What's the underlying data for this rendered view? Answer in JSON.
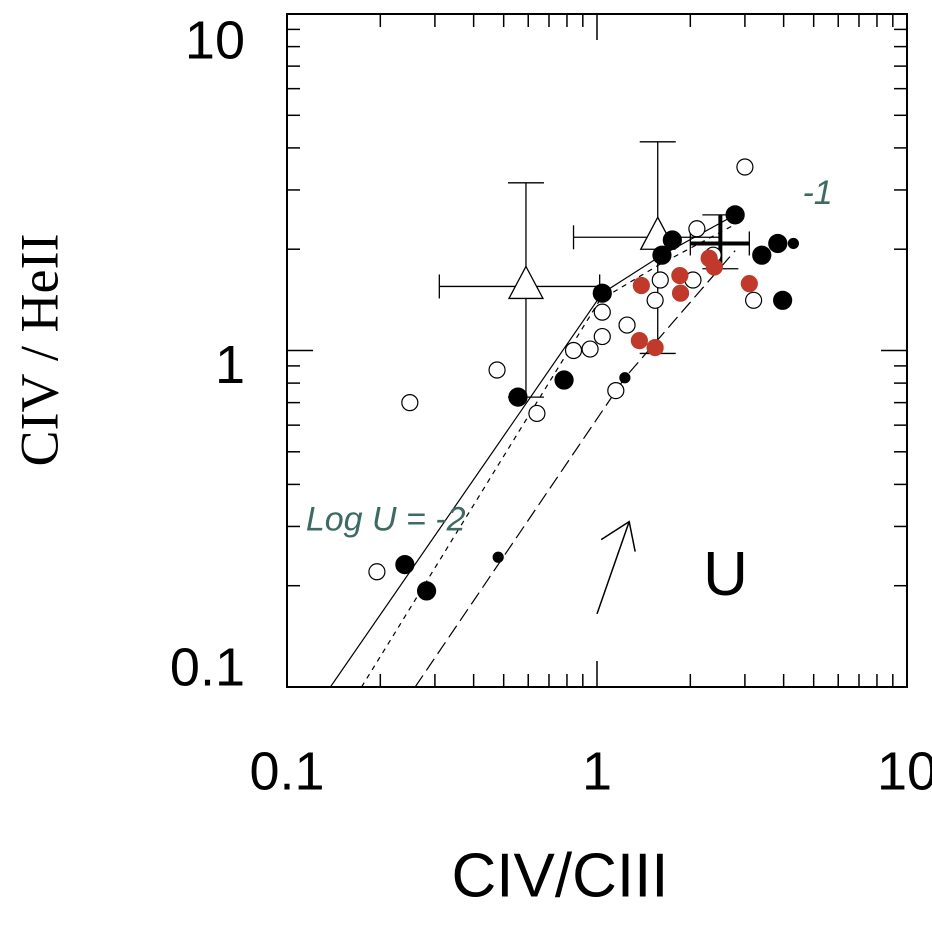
{
  "chart_data": {
    "type": "scatter",
    "log_x": true,
    "log_y": true,
    "x_label": "CIV/CIII",
    "y_label": "CIV / HeII",
    "xlim": [
      0.1,
      10
    ],
    "ylim": [
      0.1,
      10
    ],
    "xticks": [
      0.1,
      1,
      10
    ],
    "yticks": [
      0.1,
      1,
      10
    ],
    "xminor_ticks": [
      0.2,
      0.3,
      0.4,
      0.5,
      0.6,
      0.7,
      0.8,
      0.9,
      2,
      3,
      4,
      5,
      6,
      7,
      8,
      9
    ],
    "yminor_ticks": [
      0.2,
      0.3,
      0.4,
      0.5,
      0.6,
      0.7,
      0.8,
      0.9,
      2,
      3,
      4,
      5,
      6,
      7,
      8,
      9
    ],
    "annotations": [
      {
        "text": "Log U = -2",
        "x": 0.115,
        "y": 0.31,
        "color": "#3d6b63"
      },
      {
        "text": "-1",
        "x": 4.6,
        "y": 2.9,
        "color": "#3d6b63"
      },
      {
        "text": "U",
        "x": 2.2,
        "y": 0.21,
        "color": "#000000"
      }
    ],
    "arrow": {
      "x": [
        1.0,
        1.27
      ],
      "y": [
        0.165,
        0.31
      ]
    },
    "series": [
      {
        "marker": "filled",
        "color": "#000000",
        "size": 9,
        "x": [
          0.24,
          0.282,
          0.556,
          0.783,
          1.04,
          1.62,
          1.75,
          2.79,
          3.4,
          3.83,
          3.97
        ],
        "values": [
          0.231,
          0.193,
          0.727,
          0.817,
          1.48,
          1.92,
          2.13,
          2.53,
          1.92,
          2.08,
          1.41
        ]
      },
      {
        "marker": "filled",
        "color": "#000000",
        "size": 5,
        "x": [
          0.48,
          1.23,
          4.3
        ],
        "values": [
          0.243,
          0.83,
          2.08
        ]
      },
      {
        "marker": "open",
        "color": "#000000",
        "size": 8,
        "x": [
          0.195,
          0.249,
          0.476,
          0.64,
          0.84,
          0.95,
          1.04,
          1.04,
          1.25,
          1.15,
          1.6,
          1.54,
          2.04,
          3.0,
          3.2,
          2.1,
          2.37
        ],
        "values": [
          0.22,
          0.7,
          0.875,
          0.65,
          1.0,
          1.01,
          1.1,
          1.3,
          1.19,
          0.76,
          1.62,
          1.41,
          1.62,
          3.51,
          1.41,
          2.3,
          1.92
        ]
      },
      {
        "marker": "filled",
        "color": "#c0392b",
        "size": 8,
        "x": [
          1.39,
          1.37,
          1.54,
          1.85,
          1.86,
          2.3,
          2.39,
          3.1
        ],
        "values": [
          1.56,
          1.07,
          1.02,
          1.67,
          1.48,
          1.88,
          1.77,
          1.58
        ]
      }
    ],
    "lines": [
      {
        "style": "solid",
        "x": [
          0.138,
          1.04,
          1.62,
          2.79
        ],
        "values": [
          0.1,
          1.48,
          1.92,
          2.53
        ]
      },
      {
        "style": "dashed",
        "x": [
          0.174,
          1.02,
          1.59,
          2.79
        ],
        "values": [
          0.1,
          1.41,
          1.8,
          2.37
        ]
      },
      {
        "style": "longdash",
        "x": [
          0.259,
          1.23,
          2.16,
          2.79
        ],
        "values": [
          0.1,
          0.83,
          1.51,
          1.98
        ]
      }
    ],
    "errorbars": [
      {
        "marker": "triangle",
        "x": 0.59,
        "y": 1.55,
        "xlow": 0.31,
        "xhigh": 1.02,
        "ylow": 0.727,
        "yhigh": 3.15
      },
      {
        "marker": "triangle",
        "x": 1.57,
        "y": 2.17,
        "xlow": 0.84,
        "xhigh": 2.5,
        "ylow": 0.98,
        "yhigh": 4.17
      },
      {
        "marker": "cross",
        "x": 2.5,
        "y": 2.08,
        "xlow": 2.0,
        "xhigh": 3.1,
        "ylow": 1.75,
        "yhigh": 2.53
      }
    ]
  }
}
